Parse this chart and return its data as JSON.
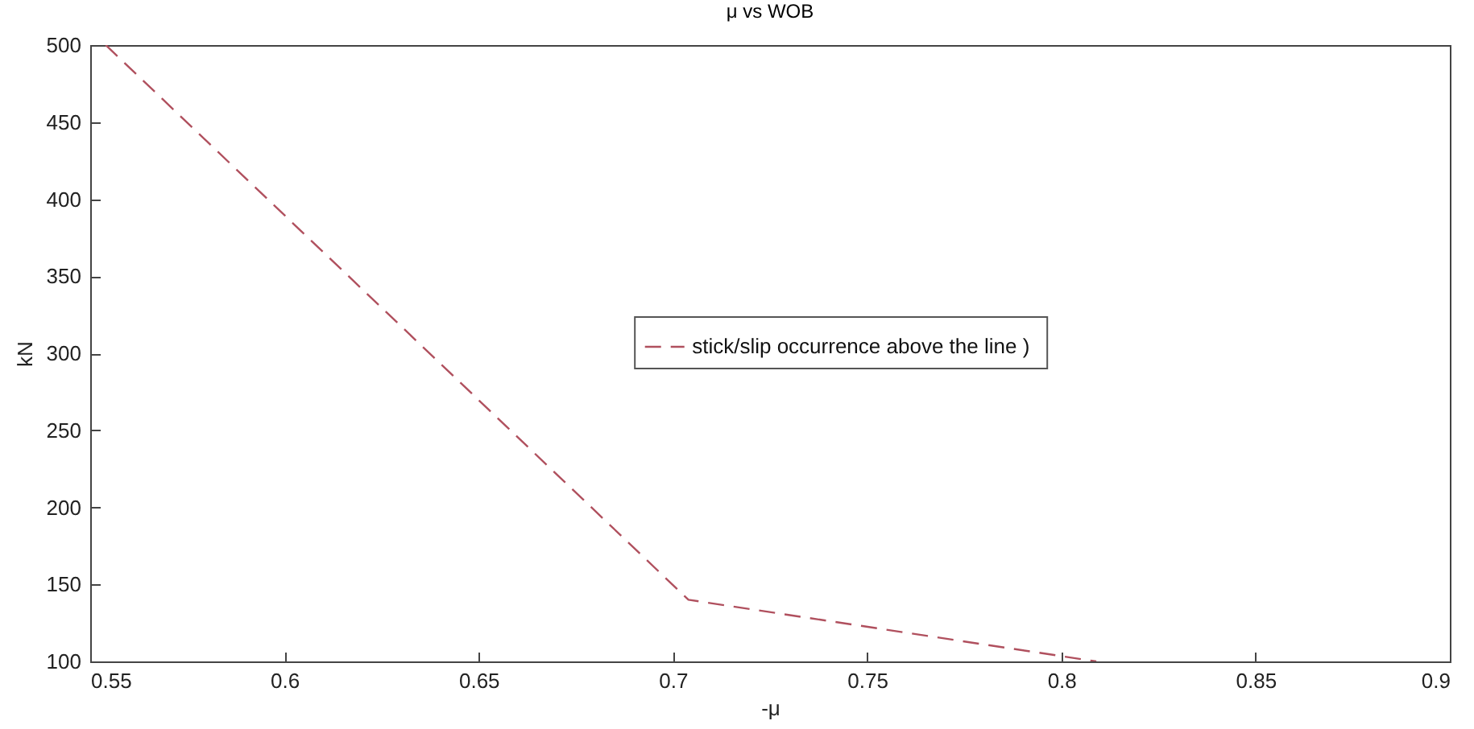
{
  "chart_data": {
    "type": "line",
    "title": "μ vs WOB",
    "xlabel": "-μ",
    "ylabel": "kN",
    "x": [
      0.554,
      0.704,
      0.809
    ],
    "series": [
      {
        "name": "stick/slip occurrence above the line  )",
        "color": "#b0505e",
        "values": [
          500,
          140,
          100
        ]
      }
    ],
    "xlim": [
      0.55,
      0.9
    ],
    "xticks": [
      0.55,
      0.6,
      0.65,
      0.7,
      0.75,
      0.8,
      0.85,
      0.9
    ],
    "ylim": [
      100,
      500
    ],
    "yticks": [
      100,
      150,
      200,
      250,
      300,
      350,
      400,
      450,
      500
    ],
    "grid": false,
    "legend": "center",
    "line_style": "dashed",
    "marker": "none"
  }
}
